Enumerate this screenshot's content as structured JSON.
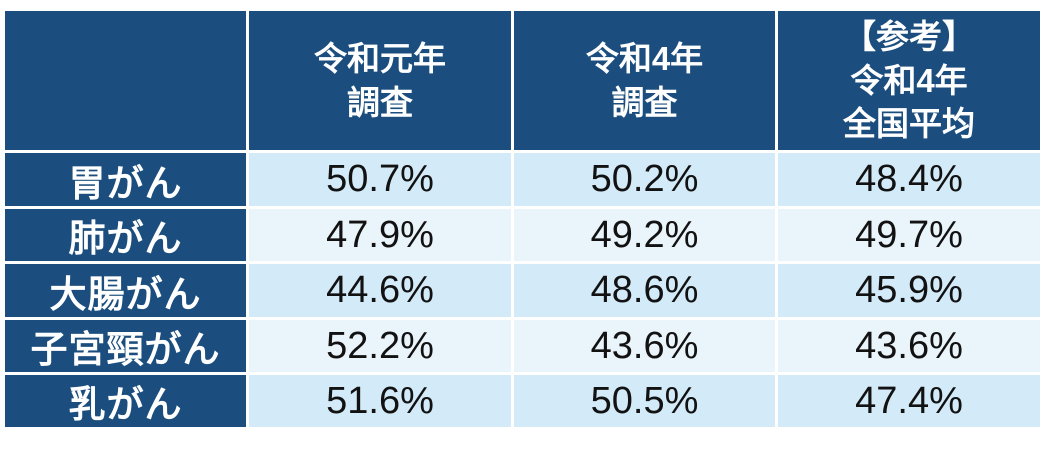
{
  "table": {
    "columns": [
      {
        "lines": [
          ""
        ]
      },
      {
        "lines": [
          "令和元年",
          "調査"
        ]
      },
      {
        "lines": [
          "令和4年",
          "調査"
        ]
      },
      {
        "lines": [
          "【参考】",
          "令和4年",
          "全国平均"
        ]
      }
    ],
    "rows": [
      {
        "label": "胃がん",
        "values": [
          "50.7%",
          "50.2%",
          "48.4%"
        ]
      },
      {
        "label": "肺がん",
        "values": [
          "47.9%",
          "49.2%",
          "49.7%"
        ]
      },
      {
        "label": "大腸がん",
        "values": [
          "44.6%",
          "48.6%",
          "45.9%"
        ]
      },
      {
        "label": "子宮頸がん",
        "values": [
          "52.2%",
          "43.6%",
          "43.6%"
        ]
      },
      {
        "label": "乳がん",
        "values": [
          "51.6%",
          "50.5%",
          "47.4%"
        ]
      }
    ]
  },
  "colors": {
    "header_navy": "#1b4e7e",
    "band_dark": "#d3eaf8",
    "band_light": "#eaf4fb",
    "grid_line": "#ffffff",
    "header_text": "#ffffff",
    "value_text": "#121212"
  },
  "chart_data": {
    "type": "table",
    "title": "",
    "unit": "%",
    "categories": [
      "胃がん",
      "肺がん",
      "大腸がん",
      "子宮頸がん",
      "乳がん"
    ],
    "series": [
      {
        "name": "令和元年調査",
        "values": [
          50.7,
          47.9,
          44.6,
          52.2,
          51.6
        ]
      },
      {
        "name": "令和4年調査",
        "values": [
          50.2,
          49.2,
          48.6,
          43.6,
          50.5
        ]
      },
      {
        "name": "【参考】令和4年全国平均",
        "values": [
          48.4,
          49.7,
          45.9,
          43.6,
          47.4
        ]
      }
    ]
  }
}
